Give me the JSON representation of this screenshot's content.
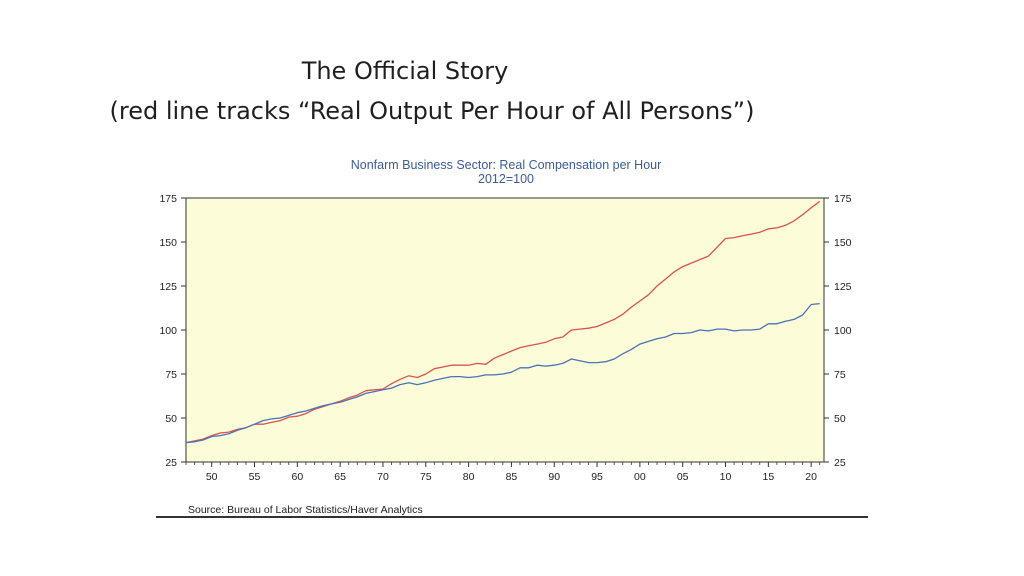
{
  "slide": {
    "title_line1": "The Official Story",
    "title_line2": "(red line tracks “Real Output Per Hour of All Persons”)"
  },
  "colors": {
    "plot_background": "#fcfcd9",
    "red_series": "#d9534f",
    "blue_series": "#4a72b8",
    "title_color": "#3d5a99"
  },
  "chart_data": {
    "type": "line",
    "title": "Nonfarm Business Sector: Real Compensation per Hour",
    "subtitle": "2012=100",
    "source": "Source:  Bureau of Labor Statistics/Haver Analytics",
    "xlabel": "",
    "ylabel": "",
    "xlim": [
      1947,
      2021.5
    ],
    "ylim": [
      25,
      175
    ],
    "x_ticks": [
      1950,
      1955,
      1960,
      1965,
      1970,
      1975,
      1980,
      1985,
      1990,
      1995,
      2000,
      2005,
      2010,
      2015,
      2020
    ],
    "x_tick_labels": [
      "50",
      "55",
      "60",
      "65",
      "70",
      "75",
      "80",
      "85",
      "90",
      "95",
      "00",
      "05",
      "10",
      "15",
      "20"
    ],
    "y_ticks": [
      25,
      50,
      75,
      100,
      125,
      150,
      175
    ],
    "y_tick_labels": [
      "25",
      "50",
      "75",
      "100",
      "125",
      "150",
      "175"
    ],
    "grid": false,
    "series": [
      {
        "name": "Real Output Per Hour of All Persons",
        "color": "#d9534f",
        "x": [
          1947,
          1948,
          1949,
          1950,
          1951,
          1952,
          1953,
          1954,
          1955,
          1956,
          1957,
          1958,
          1959,
          1960,
          1961,
          1962,
          1963,
          1964,
          1965,
          1966,
          1967,
          1968,
          1969,
          1970,
          1971,
          1972,
          1973,
          1974,
          1975,
          1976,
          1977,
          1978,
          1979,
          1980,
          1981,
          1982,
          1983,
          1984,
          1985,
          1986,
          1987,
          1988,
          1989,
          1990,
          1991,
          1992,
          1993,
          1994,
          1995,
          1996,
          1997,
          1998,
          1999,
          2000,
          2001,
          2002,
          2003,
          2004,
          2005,
          2006,
          2007,
          2008,
          2009,
          2010,
          2011,
          2012,
          2013,
          2014,
          2015,
          2016,
          2017,
          2018,
          2019,
          2020,
          2021
        ],
        "values": [
          36,
          37,
          38,
          40,
          41.5,
          42,
          43.5,
          44.5,
          46.5,
          46.5,
          47.5,
          48.5,
          50.5,
          51,
          52.5,
          55,
          56.5,
          58,
          59.5,
          61.5,
          63,
          65.5,
          66,
          66.5,
          69.5,
          72,
          74,
          73,
          75,
          78,
          79,
          80,
          80,
          80,
          81,
          80.5,
          84,
          86,
          88,
          90,
          91,
          92,
          93,
          95,
          96,
          100,
          100.5,
          101,
          102,
          104,
          106,
          109,
          113,
          116.5,
          120,
          125,
          129,
          133,
          136,
          138,
          140,
          142,
          147,
          152,
          152.5,
          153.5,
          154.5,
          155.5,
          157.5,
          158,
          159.5,
          162,
          165.5,
          169.5,
          173
        ]
      },
      {
        "name": "Real Compensation per Hour",
        "color": "#4a72b8",
        "x": [
          1947,
          1948,
          1949,
          1950,
          1951,
          1952,
          1953,
          1954,
          1955,
          1956,
          1957,
          1958,
          1959,
          1960,
          1961,
          1962,
          1963,
          1964,
          1965,
          1966,
          1967,
          1968,
          1969,
          1970,
          1971,
          1972,
          1973,
          1974,
          1975,
          1976,
          1977,
          1978,
          1979,
          1980,
          1981,
          1982,
          1983,
          1984,
          1985,
          1986,
          1987,
          1988,
          1989,
          1990,
          1991,
          1992,
          1993,
          1994,
          1995,
          1996,
          1997,
          1998,
          1999,
          2000,
          2001,
          2002,
          2003,
          2004,
          2005,
          2006,
          2007,
          2008,
          2009,
          2010,
          2011,
          2012,
          2013,
          2014,
          2015,
          2016,
          2017,
          2018,
          2019,
          2020,
          2021
        ],
        "values": [
          36,
          36.5,
          37.5,
          39.5,
          40,
          41,
          43,
          44.5,
          46.5,
          48.5,
          49.5,
          50,
          51.5,
          53,
          54,
          55.5,
          57,
          58,
          59,
          60.5,
          62,
          64,
          65,
          66,
          67,
          69,
          70,
          69,
          70,
          71.5,
          72.5,
          73.5,
          73.5,
          73,
          73.5,
          74.5,
          74.5,
          75,
          76,
          78.5,
          78.5,
          80,
          79.5,
          80,
          81,
          83.5,
          82.5,
          81.5,
          81.5,
          82,
          83.5,
          86.5,
          89,
          92,
          93.5,
          95,
          96,
          98,
          98,
          98.5,
          100,
          99.5,
          100.5,
          100.5,
          99.5,
          100,
          100,
          100.5,
          103.5,
          103.5,
          105,
          106,
          108.5,
          114.5,
          115
        ]
      }
    ]
  }
}
